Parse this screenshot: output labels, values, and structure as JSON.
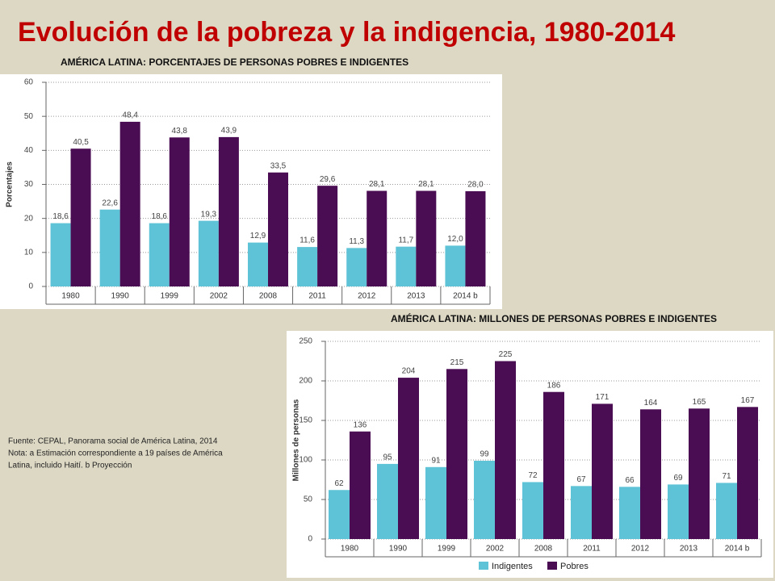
{
  "title": "Evolución de la pobreza y la indigencia, 1980-2014",
  "notes": [
    "Fuente: CEPAL, Panorama social de América Latina, 2014",
    "Nota: a Estimación correspondiente a 19 países de América",
    "Latina, incluido Haití. b Proyección"
  ],
  "chart_data": [
    {
      "type": "bar",
      "title": "AMÉRICA LATINA: PORCENTAJES DE PERSONAS POBRES E INDIGENTES",
      "ylabel": "Porcentajes",
      "categories": [
        "1980",
        "1990",
        "1999",
        "2002",
        "2008",
        "2011",
        "2012",
        "2013",
        "2014 b"
      ],
      "series": [
        {
          "color": "#5ec3d6",
          "values": [
            18.6,
            22.6,
            18.6,
            19.3,
            12.9,
            11.6,
            11.3,
            11.7,
            12.0
          ],
          "value_labels": [
            "18,6",
            "22,6",
            "18,6",
            "19,3",
            "12,9",
            "11,6",
            "11,3",
            "11,7",
            "12,0"
          ]
        },
        {
          "color": "#4a0c52",
          "values": [
            40.5,
            48.4,
            43.8,
            43.9,
            33.5,
            29.6,
            28.1,
            28.1,
            28.0
          ],
          "value_labels": [
            "40,5",
            "48,4",
            "43,8",
            "43,9",
            "33,5",
            "29,6",
            "28,1",
            "28,1",
            "28,0"
          ]
        }
      ],
      "ylim": [
        0,
        60
      ],
      "yticks": [
        0,
        10,
        20,
        30,
        40,
        50,
        60
      ],
      "grid": true,
      "legend": false
    },
    {
      "type": "bar",
      "title": "AMÉRICA LATINA: MILLONES DE PERSONAS POBRES E INDIGENTES",
      "ylabel": "Millones de personas",
      "categories": [
        "1980",
        "1990",
        "1999",
        "2002",
        "2008",
        "2011",
        "2012",
        "2013",
        "2014 b"
      ],
      "series": [
        {
          "name": "Indigentes",
          "color": "#5ec3d6",
          "values": [
            62,
            95,
            91,
            99,
            72,
            67,
            66,
            69,
            71
          ]
        },
        {
          "name": "Pobres",
          "color": "#4a0c52",
          "values": [
            136,
            204,
            215,
            225,
            186,
            171,
            164,
            165,
            167
          ]
        }
      ],
      "ylim": [
        0,
        250
      ],
      "yticks": [
        0,
        50,
        100,
        150,
        200,
        250
      ],
      "grid": true,
      "legend": "bottom"
    }
  ]
}
